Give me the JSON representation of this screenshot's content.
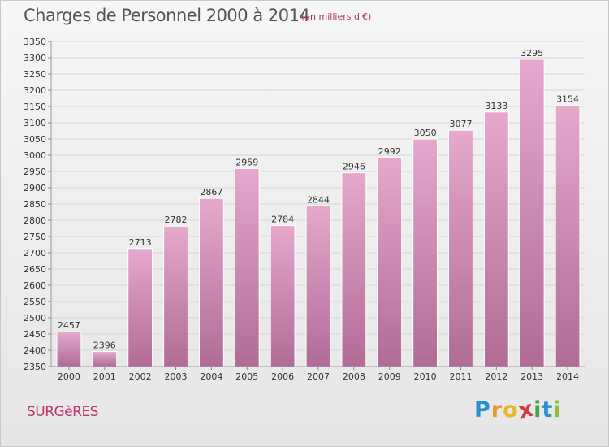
{
  "header": {
    "title": "Charges de Personnel 2000 à 2014",
    "subtitle": "(en milliers d'€)"
  },
  "place_name": "SURGèRES",
  "logo": {
    "text": "Proxiti",
    "letters": [
      {
        "ch": "P",
        "color": "#2a8fd0"
      },
      {
        "ch": "r",
        "color": "#e89a2c"
      },
      {
        "ch": "o",
        "color": "#e8b820"
      },
      {
        "ch": "x",
        "color": "#d03a3a"
      },
      {
        "ch": "i",
        "color": "#3aa84a"
      },
      {
        "ch": "t",
        "color": "#2a8fd0"
      },
      {
        "ch": "i",
        "color": "#8cbf3a"
      }
    ]
  },
  "colors": {
    "bar_top": "#e6a8cc",
    "bar_bottom": "#b06c96",
    "axis_text": "#333333",
    "grid": "#d6d6d6"
  },
  "chart_data": {
    "type": "bar",
    "title": "Charges de Personnel 2000 à 2014",
    "subtitle": "(en milliers d'€)",
    "categories": [
      "2000",
      "2001",
      "2002",
      "2003",
      "2004",
      "2005",
      "2006",
      "2007",
      "2008",
      "2009",
      "2010",
      "2011",
      "2012",
      "2013",
      "2014"
    ],
    "values": [
      2457,
      2396,
      2713,
      2782,
      2867,
      2959,
      2784,
      2844,
      2946,
      2992,
      3050,
      3077,
      3133,
      3295,
      3154
    ],
    "ylim": [
      2350,
      3350
    ],
    "ytick_step": 50,
    "grid": true,
    "data_labels": true
  }
}
